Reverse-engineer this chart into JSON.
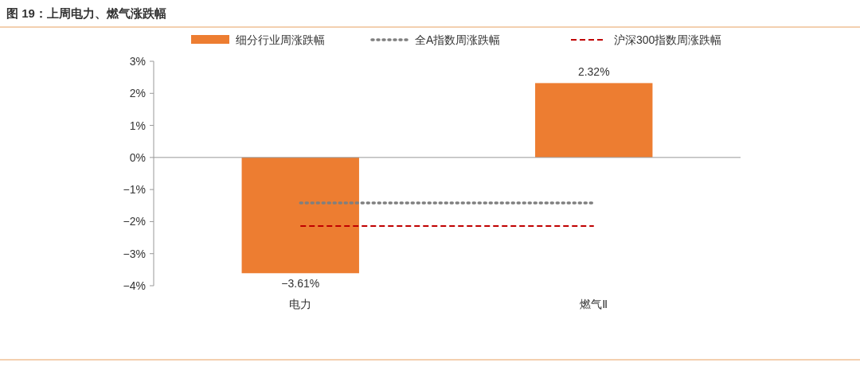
{
  "chart_data": {
    "type": "bar",
    "title": "图 19：上周电力、燃气涨跌幅",
    "categories": [
      "电力",
      "燃气Ⅱ"
    ],
    "series": [
      {
        "name": "细分行业周涨跌幅",
        "color": "#ed7d31",
        "values": [
          -3.61,
          2.32
        ],
        "value_labels": [
          "−3.61%",
          "2.32%"
        ]
      },
      {
        "name": "全A指数周涨跌幅",
        "type": "line",
        "color": "#7f7f7f",
        "line_style": "dotted",
        "values": [
          -1.42,
          -1.42
        ]
      },
      {
        "name": "沪深300指数周涨跌幅",
        "type": "line",
        "color": "#c00000",
        "line_style": "dashed",
        "values": [
          -2.14,
          -2.14
        ]
      }
    ],
    "ylim": [
      -4,
      3
    ],
    "yticks": [
      {
        "value": 3,
        "label": "3%"
      },
      {
        "value": 2,
        "label": "2%"
      },
      {
        "value": 1,
        "label": "1%"
      },
      {
        "value": 0,
        "label": "0%"
      },
      {
        "value": -1,
        "label": "−1%"
      },
      {
        "value": -2,
        "label": "−2%"
      },
      {
        "value": -3,
        "label": "−3%"
      },
      {
        "value": -4,
        "label": "−4%"
      }
    ],
    "legend": "top"
  }
}
